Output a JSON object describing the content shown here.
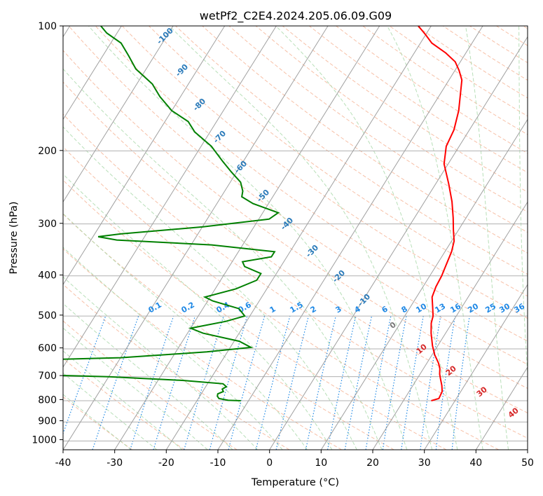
{
  "chart_data": {
    "type": "line",
    "title": "wetPf2_C2E4.2024.205.06.09.G09",
    "xlabel": "Temperature (°C)",
    "ylabel": "Pressure (hPa)",
    "xlim": [
      -40,
      50
    ],
    "ylim": [
      1050,
      100
    ],
    "y_scale": "log",
    "x_ticks": [
      "-40",
      "-30",
      "-20",
      "-10",
      "0",
      "10",
      "20",
      "30",
      "40",
      "50"
    ],
    "y_ticks": [
      "100",
      "200",
      "300",
      "400",
      "500",
      "600",
      "700",
      "800",
      "900",
      "1000"
    ],
    "skew": 32,
    "colors": {
      "temperature": "#ff0000",
      "dewpoint": "#008000",
      "isotherm": "#a0a0a0",
      "dry_adiabat": "#f4a582",
      "moist_adiabat": "#a6d7a6",
      "mixing_ratio": "#1e88e5",
      "pressure_grid": "#b0b0b0",
      "isotherm_label": "#2b7bba",
      "mixing_label": "#1e88e5",
      "moist_label": "#d62728",
      "neutral_label": "#777777"
    },
    "series": [
      {
        "name": "Temperature",
        "color": "#ff0000",
        "points": [
          [
            25.4,
            800
          ],
          [
            26.6,
            790
          ],
          [
            26.4,
            760
          ],
          [
            25.6,
            735
          ],
          [
            24.6,
            710
          ],
          [
            23.8,
            690
          ],
          [
            23.2,
            670
          ],
          [
            22.3,
            650
          ],
          [
            20.5,
            620
          ],
          [
            19.0,
            590
          ],
          [
            17.2,
            550
          ],
          [
            16.0,
            520
          ],
          [
            15.5,
            500
          ],
          [
            14.3,
            475
          ],
          [
            13.0,
            450
          ],
          [
            12.5,
            425
          ],
          [
            12.3,
            400
          ],
          [
            12.0,
            385
          ],
          [
            11.7,
            370
          ],
          [
            11.3,
            350
          ],
          [
            10.5,
            330
          ],
          [
            9.0,
            310
          ],
          [
            7.5,
            290
          ],
          [
            5.3,
            265
          ],
          [
            2.5,
            240
          ],
          [
            -0.8,
            215
          ],
          [
            -2.5,
            195
          ],
          [
            -3.0,
            178
          ],
          [
            -4.4,
            160
          ],
          [
            -6.2,
            145
          ],
          [
            -7.5,
            135
          ],
          [
            -9.2,
            128
          ],
          [
            -11.0,
            122
          ],
          [
            -14.0,
            116
          ],
          [
            -17.8,
            110
          ],
          [
            -20.0,
            105
          ],
          [
            -22.5,
            100
          ]
        ]
      },
      {
        "name": "Dewpoint",
        "color": "#008000",
        "points": [
          [
            -11.5,
            800
          ],
          [
            -14.0,
            798
          ],
          [
            -16.0,
            790
          ],
          [
            -16.6,
            780
          ],
          [
            -16.8,
            770
          ],
          [
            -16.0,
            760
          ],
          [
            -16.5,
            750
          ],
          [
            -16.0,
            740
          ],
          [
            -17.0,
            728
          ],
          [
            -25.0,
            715
          ],
          [
            -40.0,
            700
          ],
          [
            -60.0,
            690
          ],
          [
            -60.0,
            640
          ],
          [
            -40.0,
            630
          ],
          [
            -24.0,
            610
          ],
          [
            -16.0,
            595
          ],
          [
            -19.0,
            575
          ],
          [
            -27.0,
            550
          ],
          [
            -30.0,
            535
          ],
          [
            -24.0,
            515
          ],
          [
            -21.0,
            500
          ],
          [
            -23.0,
            480
          ],
          [
            -29.0,
            460
          ],
          [
            -31.0,
            450
          ],
          [
            -26.0,
            430
          ],
          [
            -23.0,
            410
          ],
          [
            -23.0,
            395
          ],
          [
            -27.0,
            380
          ],
          [
            -28.0,
            370
          ],
          [
            -23.0,
            360
          ],
          [
            -23.0,
            350
          ],
          [
            -36.0,
            337
          ],
          [
            -55.0,
            328
          ],
          [
            -59.0,
            322
          ],
          [
            -55.0,
            317
          ],
          [
            -40.0,
            305
          ],
          [
            -28.0,
            292
          ],
          [
            -27.0,
            282
          ],
          [
            -33.0,
            268
          ],
          [
            -36.0,
            258
          ],
          [
            -36.5,
            250
          ],
          [
            -38.0,
            238
          ],
          [
            -41.0,
            225
          ],
          [
            -44.0,
            212
          ],
          [
            -48.0,
            195
          ],
          [
            -53.0,
            180
          ],
          [
            -55.5,
            170
          ],
          [
            -60.0,
            160
          ],
          [
            -64.0,
            148
          ],
          [
            -67.0,
            138
          ],
          [
            -72.0,
            127
          ],
          [
            -75.0,
            118
          ],
          [
            -78.0,
            110
          ],
          [
            -82.0,
            104
          ],
          [
            -84.0,
            100
          ]
        ]
      }
    ],
    "isotherm_labels": [
      "-100",
      "-90",
      "-80",
      "-70",
      "-60",
      "-50",
      "-40",
      "-30",
      "-20",
      "-10"
    ],
    "mixing_ratio_labels": [
      "0.1",
      "0.2",
      "0.4",
      "0.6",
      "1",
      "1.5",
      "2",
      "3",
      "4",
      "6",
      "8",
      "10",
      "13",
      "16",
      "20",
      "25",
      "30",
      "36"
    ],
    "moist_adiabat_labels": [
      "0",
      "10",
      "20",
      "30",
      "40"
    ]
  }
}
